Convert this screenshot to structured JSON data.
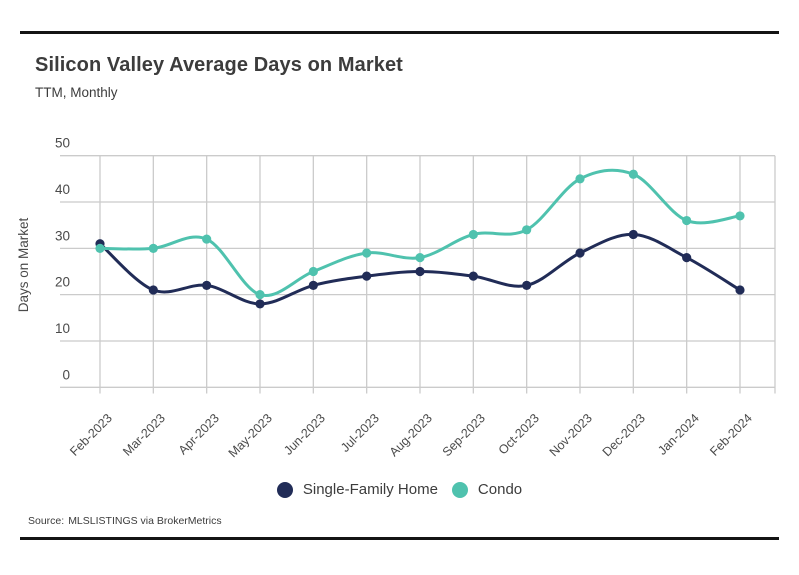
{
  "chart_data": {
    "type": "line",
    "title": "Silicon Valley Average Days on Market",
    "subtitle": "TTM, Monthly",
    "xlabel": "",
    "ylabel": "Days on Market",
    "x_categories": [
      "Feb-2023",
      "Mar-2023",
      "Apr-2023",
      "May-2023",
      "Jun-2023",
      "Jul-2023",
      "Aug-2023",
      "Sep-2023",
      "Oct-2023",
      "Nov-2023",
      "Dec-2023",
      "Jan-2024",
      "Feb-2024"
    ],
    "series": [
      {
        "name": "Single-Family Home",
        "color": "#212C57",
        "values": [
          31,
          21,
          22,
          18,
          22,
          24,
          25,
          24,
          22,
          29,
          33,
          28,
          21
        ]
      },
      {
        "name": "Condo",
        "color": "#4FC2AE",
        "values": [
          30,
          30,
          32,
          20,
          25,
          29,
          28,
          33,
          34,
          45,
          46,
          36,
          37
        ]
      }
    ],
    "ylim": [
      0,
      50
    ],
    "yticks": [
      0,
      10,
      20,
      30,
      40,
      50
    ],
    "grid": true,
    "legend_position": "bottom-center"
  },
  "source": {
    "label": "Source:",
    "text": "MLSLISTINGS via BrokerMetrics"
  },
  "colors": {
    "grid": "#CBCBCB",
    "axis_text": "#4A4A4A",
    "title_text": "#3C3C3C",
    "rule": "#141414",
    "background": "#FFFFFF",
    "single_family": "#212C57",
    "condo": "#4FC2AE"
  }
}
